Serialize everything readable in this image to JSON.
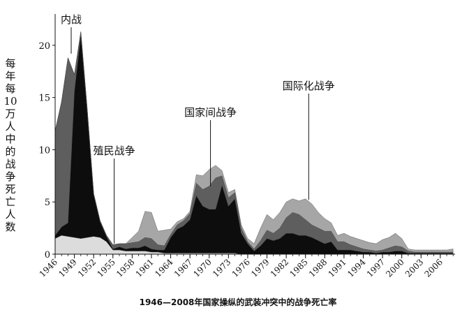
{
  "chart_data": {
    "type": "area",
    "title": "1946—2008年国家操纵的武装冲突中的战争死亡率",
    "ylabel": "每年每10万人中的战争死亡人数",
    "ylim": [
      0,
      23
    ],
    "yticks": [
      0,
      5,
      10,
      15,
      20
    ],
    "xlim": [
      1946,
      2008.3
    ],
    "xticks": [
      "1946",
      "1949",
      "1952",
      "1955",
      "1958",
      "1961",
      "1964",
      "1967",
      "1970",
      "1973",
      "1976",
      "1979",
      "1982",
      "1985",
      "1988",
      "1991",
      "1994",
      "1997",
      "2000",
      "2003",
      "2006"
    ],
    "stack_order_bottom_to_top": [
      "殖民战争",
      "内战",
      "国家间战争",
      "国际化战争"
    ],
    "colors": {
      "殖民战争": "#dcdcdc",
      "内战": "#0d0d0d",
      "国家间战争": "#5e5e5e",
      "国际化战争": "#a6a6a6"
    },
    "annotations": [
      {
        "text": "内战",
        "x": 1948.5,
        "y": 19.2
      },
      {
        "text": "殖民战争",
        "x": 1955.2,
        "y": 1.0
      },
      {
        "text": "国家间战争",
        "x": 1970.2,
        "y": 6.5
      },
      {
        "text": "国际化战争",
        "x": 1985.5,
        "y": 5.2
      }
    ],
    "x": [
      1946,
      1947,
      1948,
      1949,
      1950,
      1951,
      1952,
      1953,
      1954,
      1955,
      1956,
      1957,
      1958,
      1959,
      1960,
      1961,
      1962,
      1963,
      1964,
      1965,
      1966,
      1967,
      1968,
      1969,
      1970,
      1971,
      1972,
      1973,
      1974,
      1975,
      1976,
      1977,
      1978,
      1979,
      1980,
      1981,
      1982,
      1983,
      1984,
      1985,
      1986,
      1987,
      1988,
      1989,
      1990,
      1991,
      1992,
      1993,
      1994,
      1995,
      1996,
      1997,
      1998,
      1999,
      2000,
      2001,
      2002,
      2003,
      2004,
      2005,
      2006,
      2007,
      2008
    ],
    "series": [
      {
        "name": "殖民战争",
        "values": [
          1.5,
          1.8,
          1.7,
          1.6,
          1.5,
          1.6,
          1.7,
          1.6,
          1.2,
          0.4,
          0.4,
          0.3,
          0.3,
          0.3,
          0.3,
          0.2,
          0.2,
          0.1,
          0.1,
          0.1,
          0.1,
          0.1,
          0.1,
          0.1,
          0.1,
          0.1,
          0.1,
          0.1,
          0.1,
          0,
          0,
          0,
          0,
          0,
          0,
          0,
          0,
          0,
          0,
          0,
          0,
          0,
          0,
          0,
          0,
          0,
          0,
          0,
          0,
          0,
          0,
          0,
          0,
          0,
          0,
          0,
          0,
          0,
          0,
          0,
          0,
          0,
          0
        ]
      },
      {
        "name": "内战",
        "values": [
          0.3,
          0.8,
          1.3,
          14,
          19.5,
          12,
          4,
          1.5,
          0.5,
          0.1,
          0.3,
          0.2,
          0.3,
          0.3,
          0.5,
          0.3,
          0.2,
          0.3,
          1.5,
          2.3,
          2.6,
          3.2,
          5.5,
          4.5,
          4.2,
          4.2,
          6.5,
          4.5,
          5.2,
          2.0,
          1.0,
          0.3,
          0.8,
          1.5,
          1.3,
          1.5,
          2.0,
          2.0,
          1.8,
          1.8,
          1.6,
          1.3,
          1.0,
          1.2,
          0.4,
          0.4,
          0.4,
          0.3,
          0.2,
          0.2,
          0.1,
          0.2,
          0.2,
          0.3,
          0.3,
          0.1,
          0.1,
          0.1,
          0.1,
          0.1,
          0.1,
          0.1,
          0.1
        ]
      },
      {
        "name": "国家间战争",
        "values": [
          10,
          12,
          15.8,
          1.6,
          0.3,
          0.3,
          0.1,
          0.1,
          0.1,
          0.4,
          0.3,
          0.5,
          0.5,
          0.6,
          0.8,
          1.0,
          0.5,
          0.4,
          0.3,
          0.4,
          0.5,
          0.6,
          1.2,
          1.6,
          2.2,
          3.0,
          0.9,
          0.8,
          0.6,
          0.5,
          0.2,
          0.2,
          0.5,
          0.8,
          0.7,
          1.0,
          1.5,
          2.0,
          2.0,
          1.5,
          1.2,
          1.2,
          1.2,
          1.0,
          0.8,
          0.8,
          0.5,
          0.4,
          0.3,
          0.2,
          0.2,
          0.2,
          0.4,
          0.5,
          0.4,
          0.2,
          0.1,
          0.1,
          0.1,
          0.1,
          0.1,
          0.1,
          0.1
        ]
      },
      {
        "name": "国际化战争",
        "values": [
          0,
          0,
          0,
          0,
          0,
          0,
          0,
          0,
          0,
          0,
          0,
          0,
          0.5,
          1.0,
          2.5,
          2.5,
          1.3,
          1.5,
          0.5,
          0.3,
          0.2,
          0.2,
          0.8,
          1.3,
          1.6,
          1.2,
          0.5,
          0.5,
          0.3,
          0.3,
          0.3,
          0.5,
          1.2,
          1.5,
          1.3,
          1.5,
          1.5,
          1.3,
          1.3,
          2.0,
          2.0,
          1.5,
          1.2,
          0.8,
          0.6,
          0.8,
          0.8,
          0.8,
          0.8,
          0.7,
          0.7,
          1.0,
          1.0,
          1.2,
          0.8,
          0.2,
          0.2,
          0.2,
          0.2,
          0.2,
          0.2,
          0.2,
          0.3
        ]
      }
    ]
  }
}
